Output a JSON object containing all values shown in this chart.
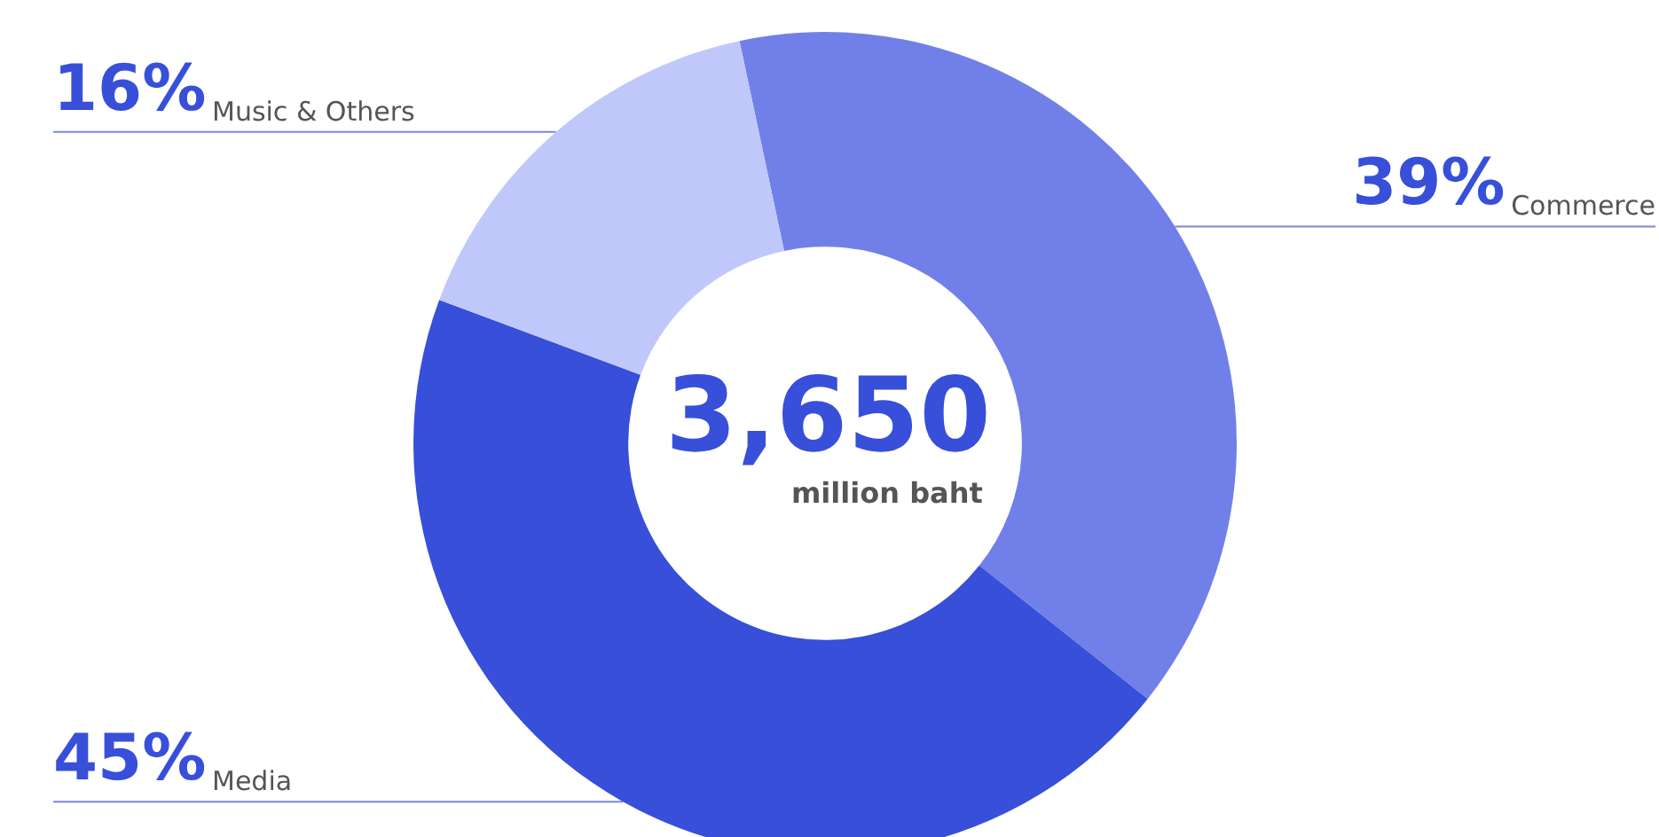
{
  "chart_data": {
    "type": "donut",
    "categories": [
      "Commerce",
      "Media",
      "Music & Others"
    ],
    "values": [
      39,
      45,
      16
    ],
    "value_labels": [
      "39%",
      "45%",
      "16%"
    ],
    "colors": [
      "#7180e8",
      "#374fd9",
      "#c0c8fb"
    ],
    "annotations": [
      "3,650",
      "million baht"
    ],
    "legend": false
  }
}
